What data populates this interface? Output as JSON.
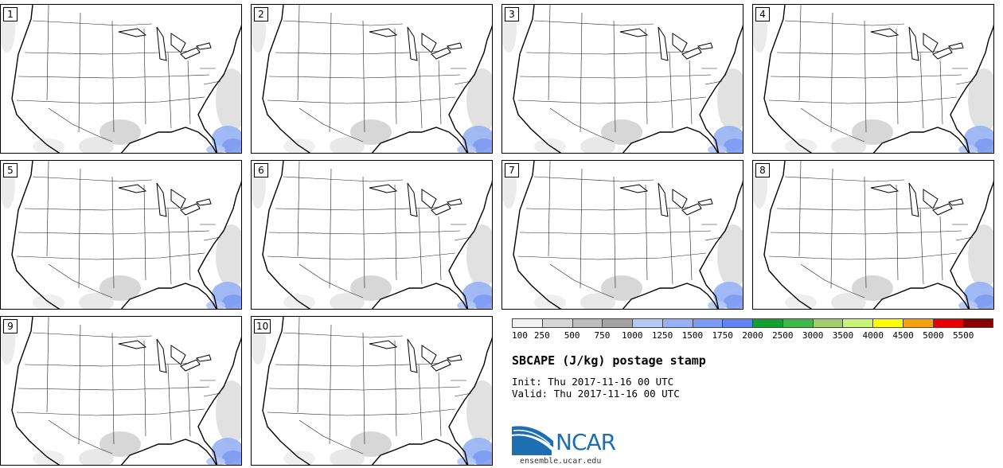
{
  "panels": [
    {
      "label": "1"
    },
    {
      "label": "2"
    },
    {
      "label": "3"
    },
    {
      "label": "4"
    },
    {
      "label": "5"
    },
    {
      "label": "6"
    },
    {
      "label": "7"
    },
    {
      "label": "8"
    },
    {
      "label": "9"
    },
    {
      "label": "10"
    }
  ],
  "legend": {
    "swatch_colors": [
      "#f2f2f2",
      "#d6d6d6",
      "#bdbdbd",
      "#a3a3a3",
      "#b3c8f5",
      "#97b2f4",
      "#7d9bf2",
      "#6283f0",
      "#15a02f",
      "#40b84a",
      "#9fcf6c",
      "#c9f37a",
      "#ffff00",
      "#f5a20c",
      "#e80000",
      "#8a0000"
    ],
    "tick_labels": [
      "100",
      "250",
      "500",
      "750",
      "1000",
      "1250",
      "1500",
      "1750",
      "2000",
      "2500",
      "3000",
      "3500",
      "4000",
      "4500",
      "5000",
      "5500"
    ]
  },
  "title": "SBCAPE (J/kg) postage stamp",
  "init": "Init: Thu 2017-11-16 00 UTC",
  "valid": "Valid: Thu 2017-11-16 00 UTC",
  "logo": {
    "text": "NCAR",
    "url": "ensemble.ucar.edu"
  }
}
